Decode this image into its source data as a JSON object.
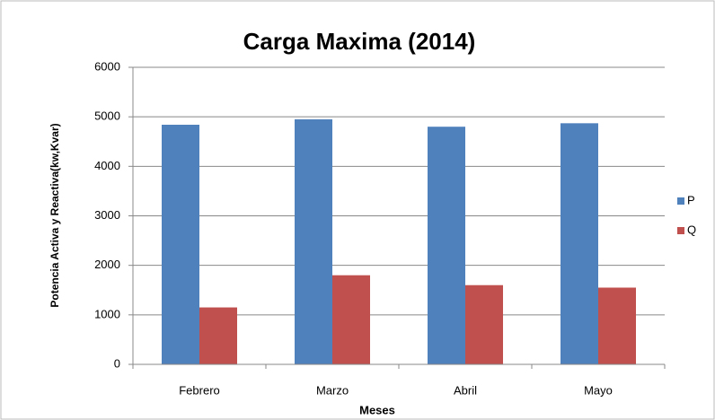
{
  "chart_data": {
    "type": "bar",
    "title": "Carga Maxima (2014)",
    "x_label": "Meses",
    "y_label": "Potencia  Activa y Reactiva(kw,Kvar)",
    "categories": [
      "Febrero",
      "Marzo",
      "Abril",
      "Mayo"
    ],
    "series": [
      {
        "name": "P",
        "color": "#4f81bd",
        "values": [
          4840,
          4950,
          4800,
          4870
        ]
      },
      {
        "name": "Q",
        "color": "#c0504d",
        "values": [
          1150,
          1800,
          1600,
          1550
        ]
      }
    ],
    "ylim": [
      0,
      6000
    ],
    "yticks": [
      0,
      1000,
      2000,
      3000,
      4000,
      5000,
      6000
    ],
    "grid": true,
    "legend": "right"
  }
}
